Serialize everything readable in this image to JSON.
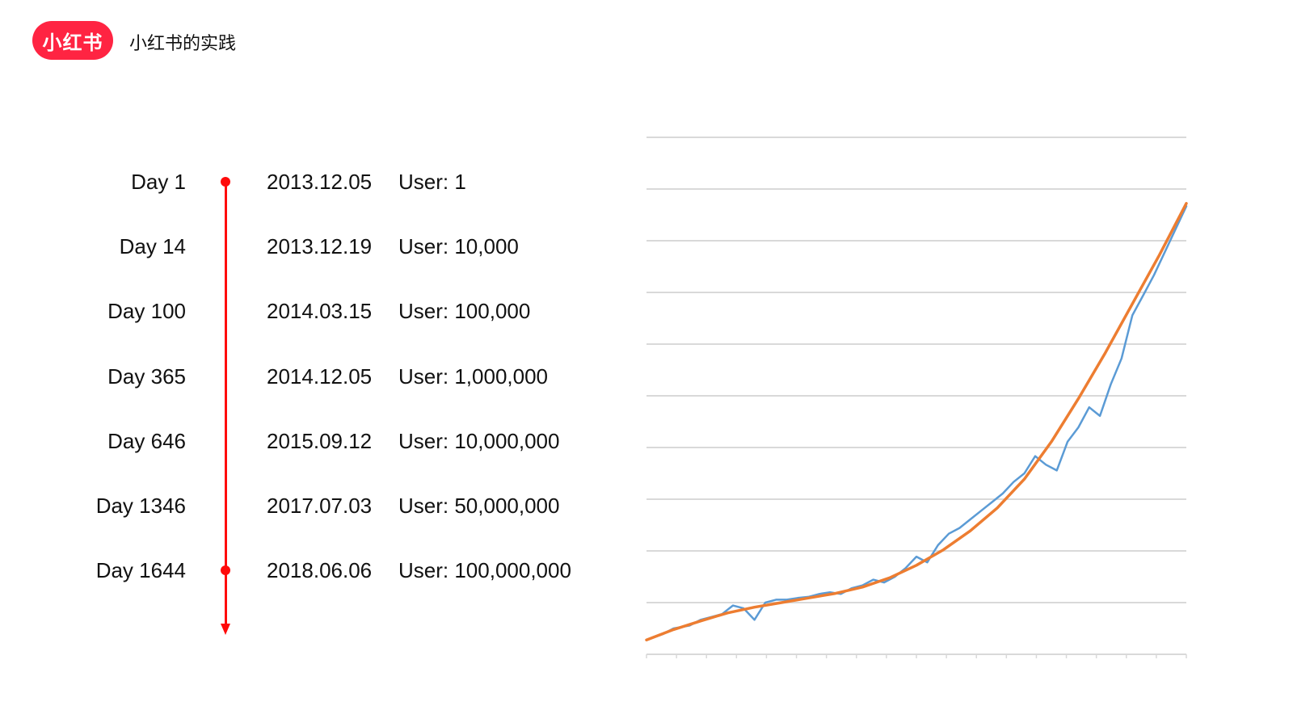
{
  "header": {
    "logo_text": "小红书",
    "title": "小红书的实践",
    "brand_color": "#ff2442"
  },
  "timeline": {
    "accent_color": "#ff0a0a",
    "rows": [
      {
        "day": "Day 1",
        "date": "2013.12.05",
        "user": "User: 1",
        "dot": true
      },
      {
        "day": "Day 14",
        "date": "2013.12.19",
        "user": "User: 10,000",
        "dot": false
      },
      {
        "day": "Day 100",
        "date": "2014.03.15",
        "user": "User: 100,000",
        "dot": false
      },
      {
        "day": "Day 365",
        "date": "2014.12.05",
        "user": "User: 1,000,000",
        "dot": false
      },
      {
        "day": "Day 646",
        "date": "2015.09.12",
        "user": "User: 10,000,000",
        "dot": false
      },
      {
        "day": "Day 1346",
        "date": "2017.07.03",
        "user": "User: 50,000,000",
        "dot": false
      },
      {
        "day": "Day 1644",
        "date": "2018.06.06",
        "user": "User: 100,000,000",
        "dot": true
      }
    ]
  },
  "chart_data": {
    "type": "line",
    "title": "",
    "xlabel": "",
    "ylabel": "",
    "xlim": [
      0,
      100
    ],
    "ylim": [
      0,
      9
    ],
    "grid": true,
    "legend": "none",
    "gridline_count": 10,
    "x_tick_count": 18,
    "series": [
      {
        "color": "#5b9bd5",
        "x": [
          0,
          3,
          5,
          8,
          10,
          12,
          14,
          16,
          18,
          20,
          22,
          24,
          26,
          28,
          30,
          32,
          34,
          36,
          38,
          40,
          42,
          44,
          46,
          48,
          50,
          52,
          54,
          56,
          58,
          60,
          62,
          64,
          66,
          68,
          70,
          72,
          74,
          76,
          78,
          80,
          82,
          84,
          86,
          88,
          90,
          92,
          94,
          96,
          98,
          100
        ],
        "y": [
          0.25,
          0.35,
          0.45,
          0.5,
          0.6,
          0.65,
          0.7,
          0.85,
          0.8,
          0.6,
          0.9,
          0.95,
          0.95,
          0.98,
          1.0,
          1.05,
          1.08,
          1.05,
          1.15,
          1.2,
          1.3,
          1.25,
          1.35,
          1.5,
          1.7,
          1.6,
          1.9,
          2.1,
          2.2,
          2.35,
          2.5,
          2.65,
          2.8,
          3.0,
          3.15,
          3.45,
          3.3,
          3.2,
          3.7,
          3.95,
          4.3,
          4.15,
          4.7,
          5.15,
          5.9,
          6.25,
          6.6,
          7.0,
          7.4,
          7.8
        ]
      },
      {
        "color": "#ed7d31",
        "x": [
          0,
          5,
          10,
          15,
          20,
          25,
          30,
          35,
          40,
          45,
          50,
          55,
          60,
          65,
          70,
          75,
          80,
          85,
          90,
          95,
          100
        ],
        "y": [
          0.25,
          0.43,
          0.58,
          0.72,
          0.82,
          0.9,
          0.98,
          1.06,
          1.17,
          1.33,
          1.55,
          1.82,
          2.15,
          2.55,
          3.05,
          3.7,
          4.45,
          5.25,
          6.1,
          6.95,
          7.85
        ]
      }
    ]
  }
}
